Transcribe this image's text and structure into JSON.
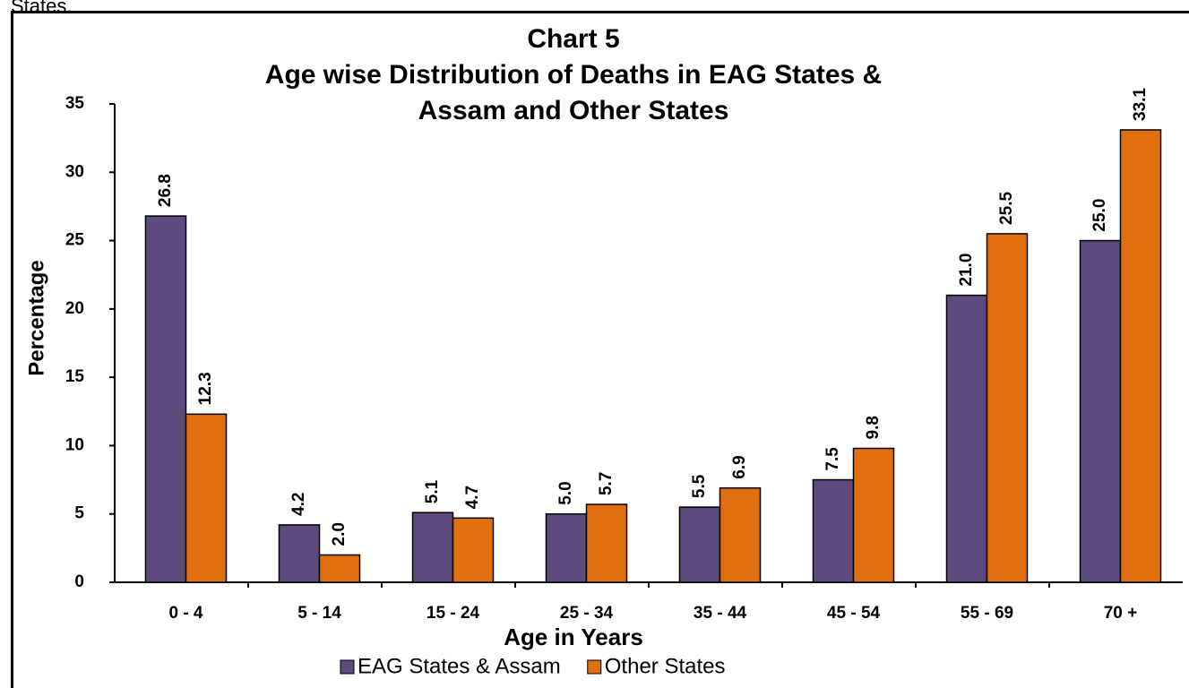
{
  "page_text": "States.",
  "chart_data": {
    "type": "bar",
    "title": [
      "Chart 5",
      "Age wise Distribution of Deaths in EAG States &",
      "Assam and Other States"
    ],
    "x_label": "Age in Years",
    "y_label": "Percentage",
    "categories": [
      "0 - 4",
      "5 - 14",
      "15 - 24",
      "25 - 34",
      "35 - 44",
      "45 - 54",
      "55 - 69",
      "70 +"
    ],
    "series": [
      {
        "name": "EAG States & Assam",
        "color": "#5f4a7e",
        "values": [
          26.8,
          4.2,
          5.1,
          5.0,
          5.5,
          7.5,
          21.0,
          25.0
        ],
        "value_labels": [
          "26.8",
          "4.2",
          "5.1",
          "5.0",
          "5.5",
          "7.5",
          "21.0",
          "25.0"
        ]
      },
      {
        "name": "Other States",
        "color": "#e0700f",
        "values": [
          12.3,
          2.0,
          4.7,
          5.7,
          6.9,
          9.8,
          25.5,
          33.1
        ],
        "value_labels": [
          "12.3",
          "2.0",
          "4.7",
          "5.7",
          "6.9",
          "9.8",
          "25.5",
          "33.1"
        ]
      }
    ],
    "ylim": [
      0,
      35
    ],
    "yticks": [
      0,
      5,
      10,
      15,
      20,
      25,
      30,
      35
    ],
    "grid": false,
    "legend": "bottom"
  }
}
